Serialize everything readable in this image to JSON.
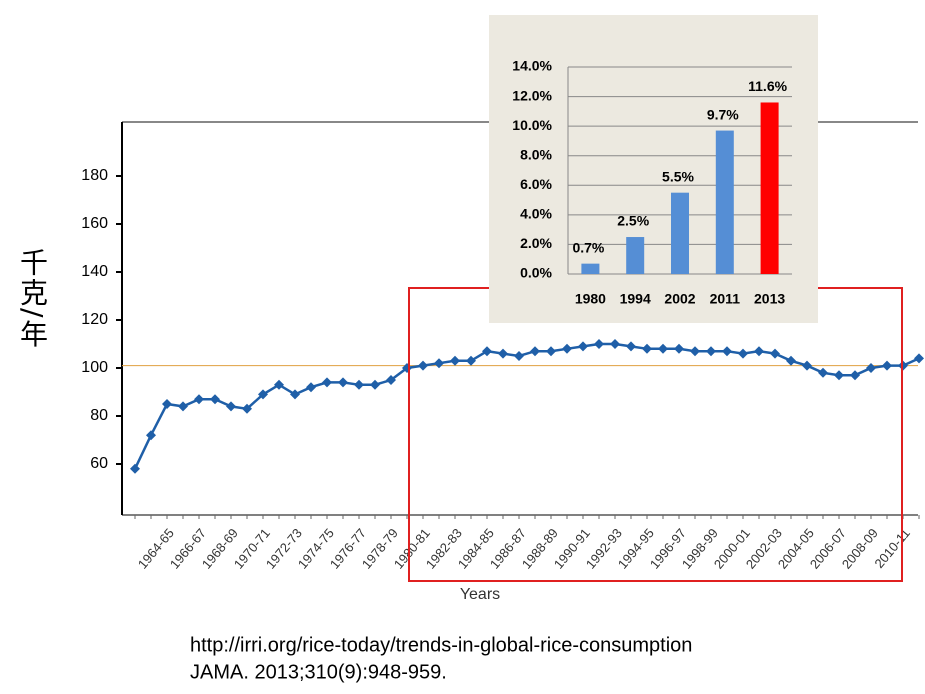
{
  "chart_data": [
    {
      "type": "line",
      "y_label": "千克/年",
      "x_label": "Years",
      "categories": [
        null,
        null,
        "1964-65",
        null,
        "1966-67",
        null,
        "1968-69",
        null,
        "1970-71",
        null,
        "1972-73",
        null,
        "1974-75",
        null,
        "1976-77",
        null,
        "1978-79",
        null,
        "1980-81",
        null,
        "1982-83",
        null,
        "1984-85",
        null,
        "1986-87",
        null,
        "1988-89",
        null,
        "1990-91",
        null,
        "1992-93",
        null,
        "1994-95",
        null,
        "1996-97",
        null,
        "1998-99",
        null,
        "2000-01",
        null,
        "2002-03",
        null,
        "2004-05",
        null,
        "2006-07",
        null,
        "2008-09",
        null,
        "2010-11",
        null
      ],
      "values": [
        58,
        72,
        85,
        84,
        87,
        87,
        84,
        83,
        89,
        93,
        89,
        92,
        94,
        94,
        93,
        93,
        95,
        100,
        101,
        102,
        103,
        103,
        107,
        106,
        105,
        107,
        107,
        108,
        109,
        110,
        110,
        109,
        108,
        108,
        108,
        107,
        107,
        107,
        106,
        107,
        106,
        103,
        101,
        98,
        97,
        97,
        100,
        101,
        101,
        104
      ],
      "color": "#1f5fa8",
      "ref_line": 101,
      "ref_color": "#e0a040",
      "ylim": [
        38.75,
        202.5
      ],
      "yticks": [
        60,
        80,
        100,
        120,
        140,
        160,
        180
      ]
    },
    {
      "type": "bar",
      "categories": [
        "1980",
        "1994",
        "2002",
        "2011",
        "2013"
      ],
      "values": [
        0.7,
        2.5,
        5.5,
        9.7,
        11.6
      ],
      "value_labels": [
        "0.7%",
        "2.5%",
        "5.5%",
        "9.7%",
        "11.6%"
      ],
      "colors": [
        "#558ed5",
        "#558ed5",
        "#558ed5",
        "#558ed5",
        "#ff0000"
      ],
      "ylim": [
        0,
        14
      ],
      "yticks": [
        {
          "value": 0,
          "label": "0.0%"
        },
        {
          "value": 2,
          "label": "2.0%"
        },
        {
          "value": 4,
          "label": "4.0%"
        },
        {
          "value": 6,
          "label": "6.0%"
        },
        {
          "value": 8,
          "label": "8.0%"
        },
        {
          "value": 10,
          "label": "10.0%"
        },
        {
          "value": 12,
          "label": "12.0%"
        },
        {
          "value": 14,
          "label": "14.0%"
        }
      ],
      "grid": true
    }
  ],
  "source": [
    "http://irri.org/rice-today/trends-in-global-rice-consumption",
    "JAMA. 2013;310(9):948-959."
  ]
}
